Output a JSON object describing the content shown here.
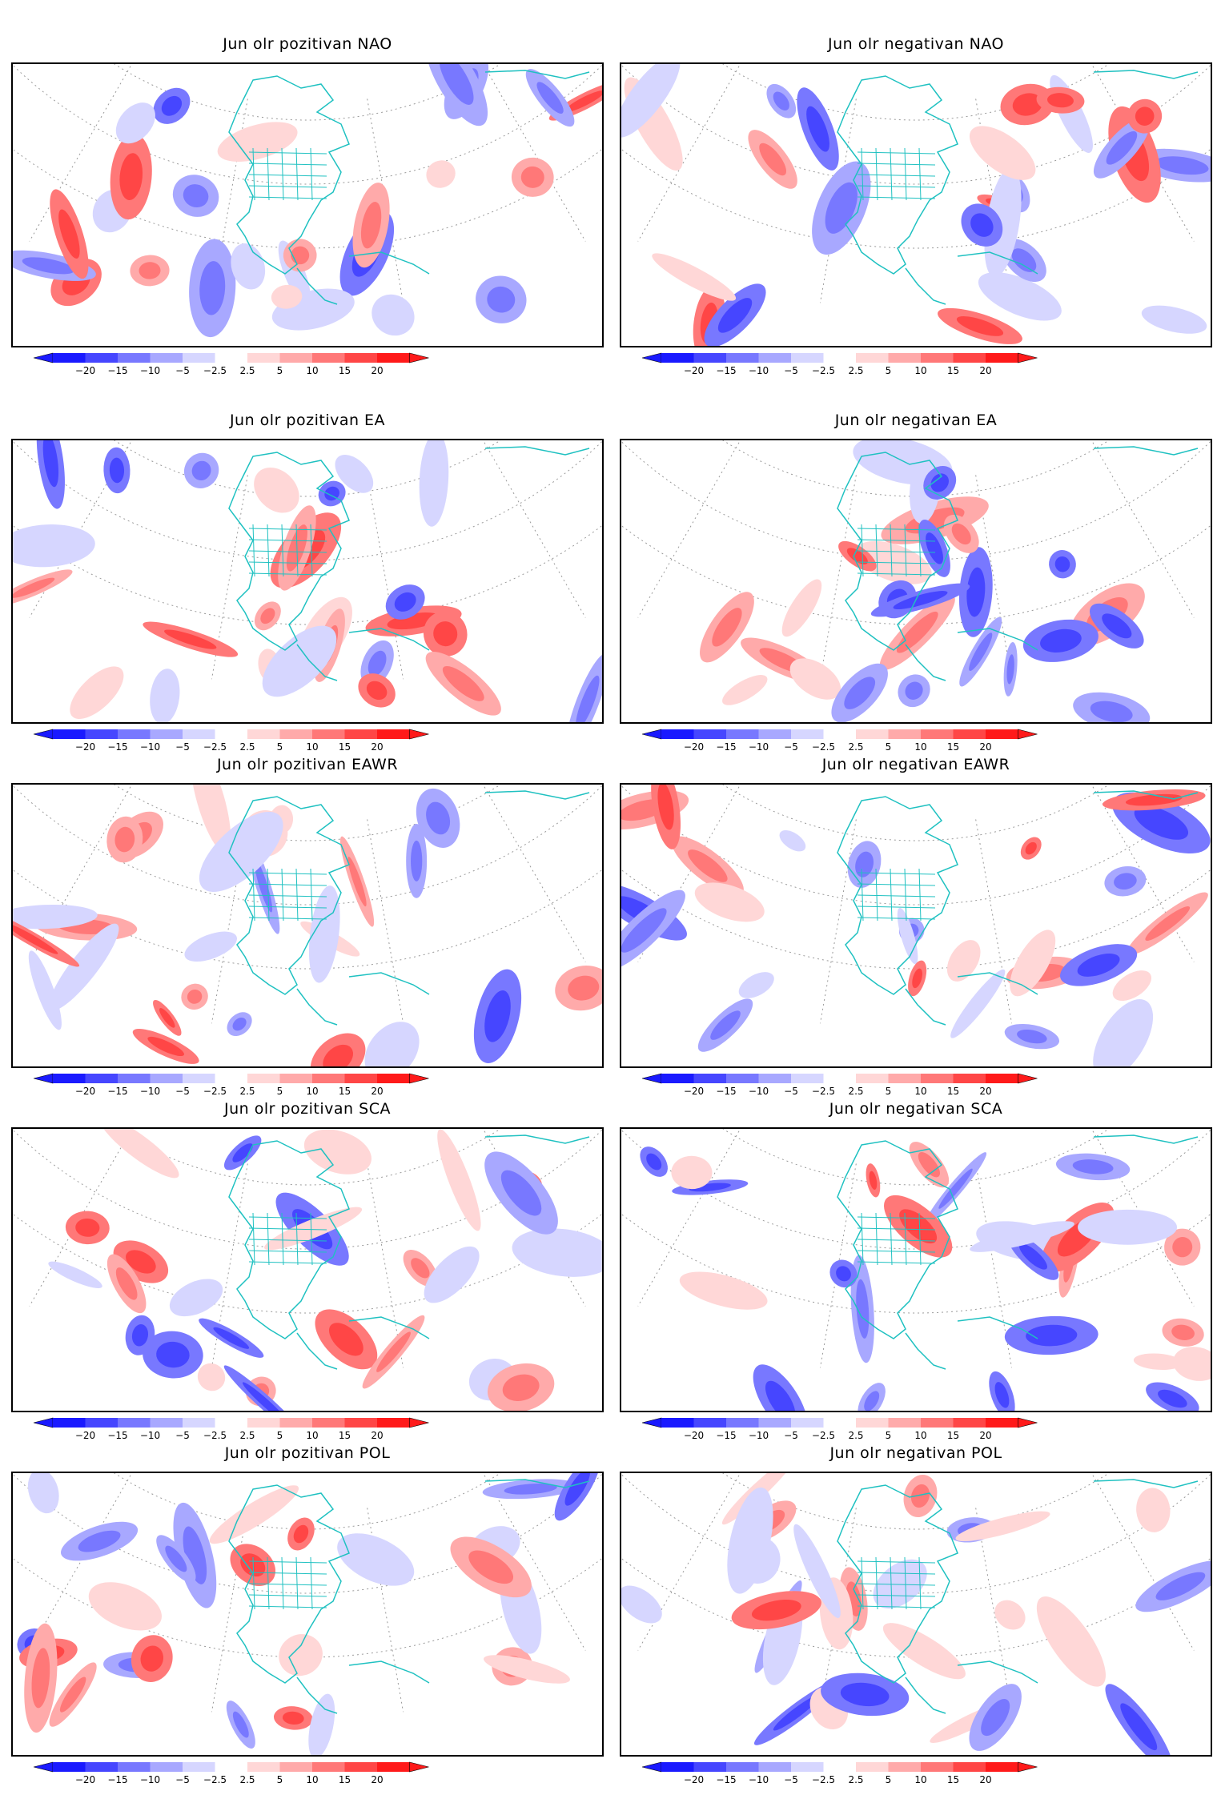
{
  "colors": {
    "land_outline": "#1fc1c1",
    "grid": "#9a9a9a",
    "scale": [
      "#1a1aff",
      "#4646ff",
      "#7878ff",
      "#a8a8ff",
      "#d6d6ff",
      "#ffffff",
      "#ffd7d7",
      "#ffaaaa",
      "#ff7878",
      "#ff4646",
      "#ff1a1a"
    ]
  },
  "colorbar": {
    "ticks": [
      "−20",
      "−15",
      "−10",
      "−5",
      "−2.5",
      "2.5",
      "5",
      "10",
      "15",
      "20"
    ]
  },
  "panels": [
    {
      "title": "Jun olr pozitivan NAO"
    },
    {
      "title": "Jun olr negativan NAO"
    },
    {
      "title": "Jun olr pozitivan EA"
    },
    {
      "title": "Jun olr negativan EA"
    },
    {
      "title": "Jun olr pozitivan EAWR"
    },
    {
      "title": "Jun olr negativan EAWR"
    },
    {
      "title": "Jun olr pozitivan SCA"
    },
    {
      "title": "Jun olr negativan SCA"
    },
    {
      "title": "Jun olr pozitivan POL"
    },
    {
      "title": "Jun olr negativan POL"
    }
  ]
}
